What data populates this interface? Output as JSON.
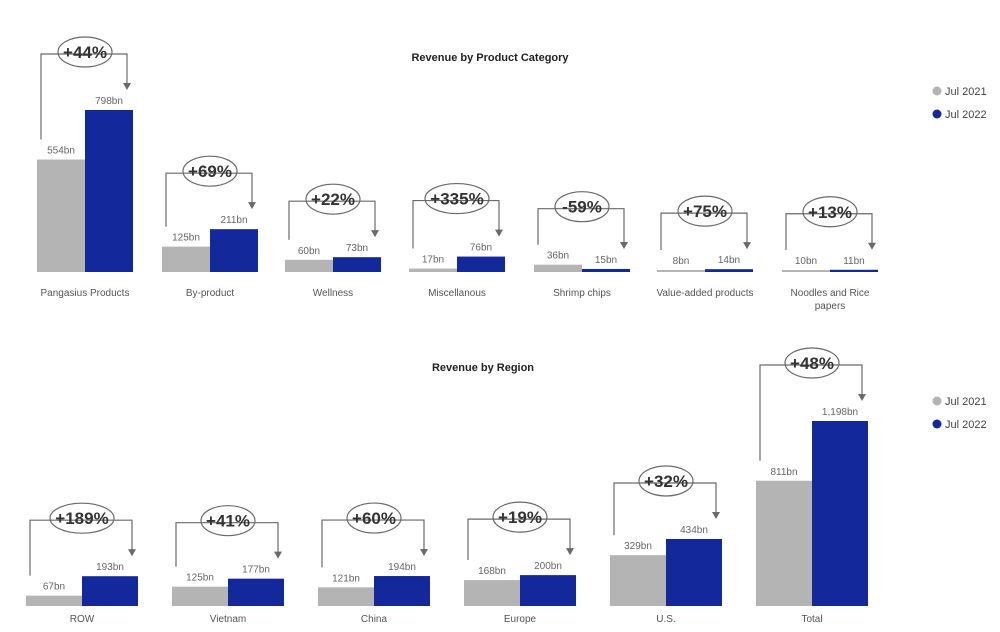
{
  "colors": {
    "jul_2021": "#b4b4b4",
    "jul_2022": "#13289b"
  },
  "chart_data": [
    {
      "type": "bar",
      "title": "Revenue by Product Category",
      "legend": {
        "position": "right",
        "labels": [
          "Jul 2021",
          "Jul 2022"
        ]
      },
      "series": [
        {
          "name": "Jul 2021"
        },
        {
          "name": "Jul 2022"
        }
      ],
      "categories": [
        {
          "label": [
            "Pangasius Products"
          ],
          "v2021": 554,
          "v2022": 798,
          "l2021": "554bn",
          "l2022": "798bn",
          "change": "+44%"
        },
        {
          "label": [
            "By-product"
          ],
          "v2021": 125,
          "v2022": 211,
          "l2021": "125bn",
          "l2022": "211bn",
          "change": "+69%"
        },
        {
          "label": [
            "Wellness"
          ],
          "v2021": 60,
          "v2022": 73,
          "l2021": "60bn",
          "l2022": "73bn",
          "change": "+22%"
        },
        {
          "label": [
            "Miscellanous"
          ],
          "v2021": 17,
          "v2022": 76,
          "l2021": "17bn",
          "l2022": "76bn",
          "change": "+335%"
        },
        {
          "label": [
            "Shrimp chips"
          ],
          "v2021": 36,
          "v2022": 15,
          "l2021": "36bn",
          "l2022": "15bn",
          "change": "-59%"
        },
        {
          "label": [
            "Value-added products"
          ],
          "v2021": 8,
          "v2022": 14,
          "l2021": "8bn",
          "l2022": "14bn",
          "change": "+75%"
        },
        {
          "label": [
            "Noodles and Rice",
            "papers"
          ],
          "v2021": 10,
          "v2022": 11,
          "l2021": "10bn",
          "l2022": "11bn",
          "change": "+13%"
        }
      ]
    },
    {
      "type": "bar",
      "title": "Revenue by Region",
      "legend": {
        "position": "right",
        "labels": [
          "Jul 2021",
          "Jul 2022"
        ]
      },
      "series": [
        {
          "name": "Jul 2021"
        },
        {
          "name": "Jul 2022"
        }
      ],
      "categories": [
        {
          "label": [
            "ROW"
          ],
          "v2021": 67,
          "v2022": 193,
          "l2021": "67bn",
          "l2022": "193bn",
          "change": "+189%"
        },
        {
          "label": [
            "Vietnam"
          ],
          "v2021": 125,
          "v2022": 177,
          "l2021": "125bn",
          "l2022": "177bn",
          "change": "+41%"
        },
        {
          "label": [
            "China"
          ],
          "v2021": 121,
          "v2022": 194,
          "l2021": "121bn",
          "l2022": "194bn",
          "change": "+60%"
        },
        {
          "label": [
            "Europe"
          ],
          "v2021": 168,
          "v2022": 200,
          "l2021": "168bn",
          "l2022": "200bn",
          "change": "+19%"
        },
        {
          "label": [
            "U.S."
          ],
          "v2021": 329,
          "v2022": 434,
          "l2021": "329bn",
          "l2022": "434bn",
          "change": "+32%"
        },
        {
          "label": [
            "Total"
          ],
          "v2021": 811,
          "v2022": 1198,
          "l2021": "811bn",
          "l2022": "1,198bn",
          "change": "+48%"
        }
      ]
    }
  ]
}
